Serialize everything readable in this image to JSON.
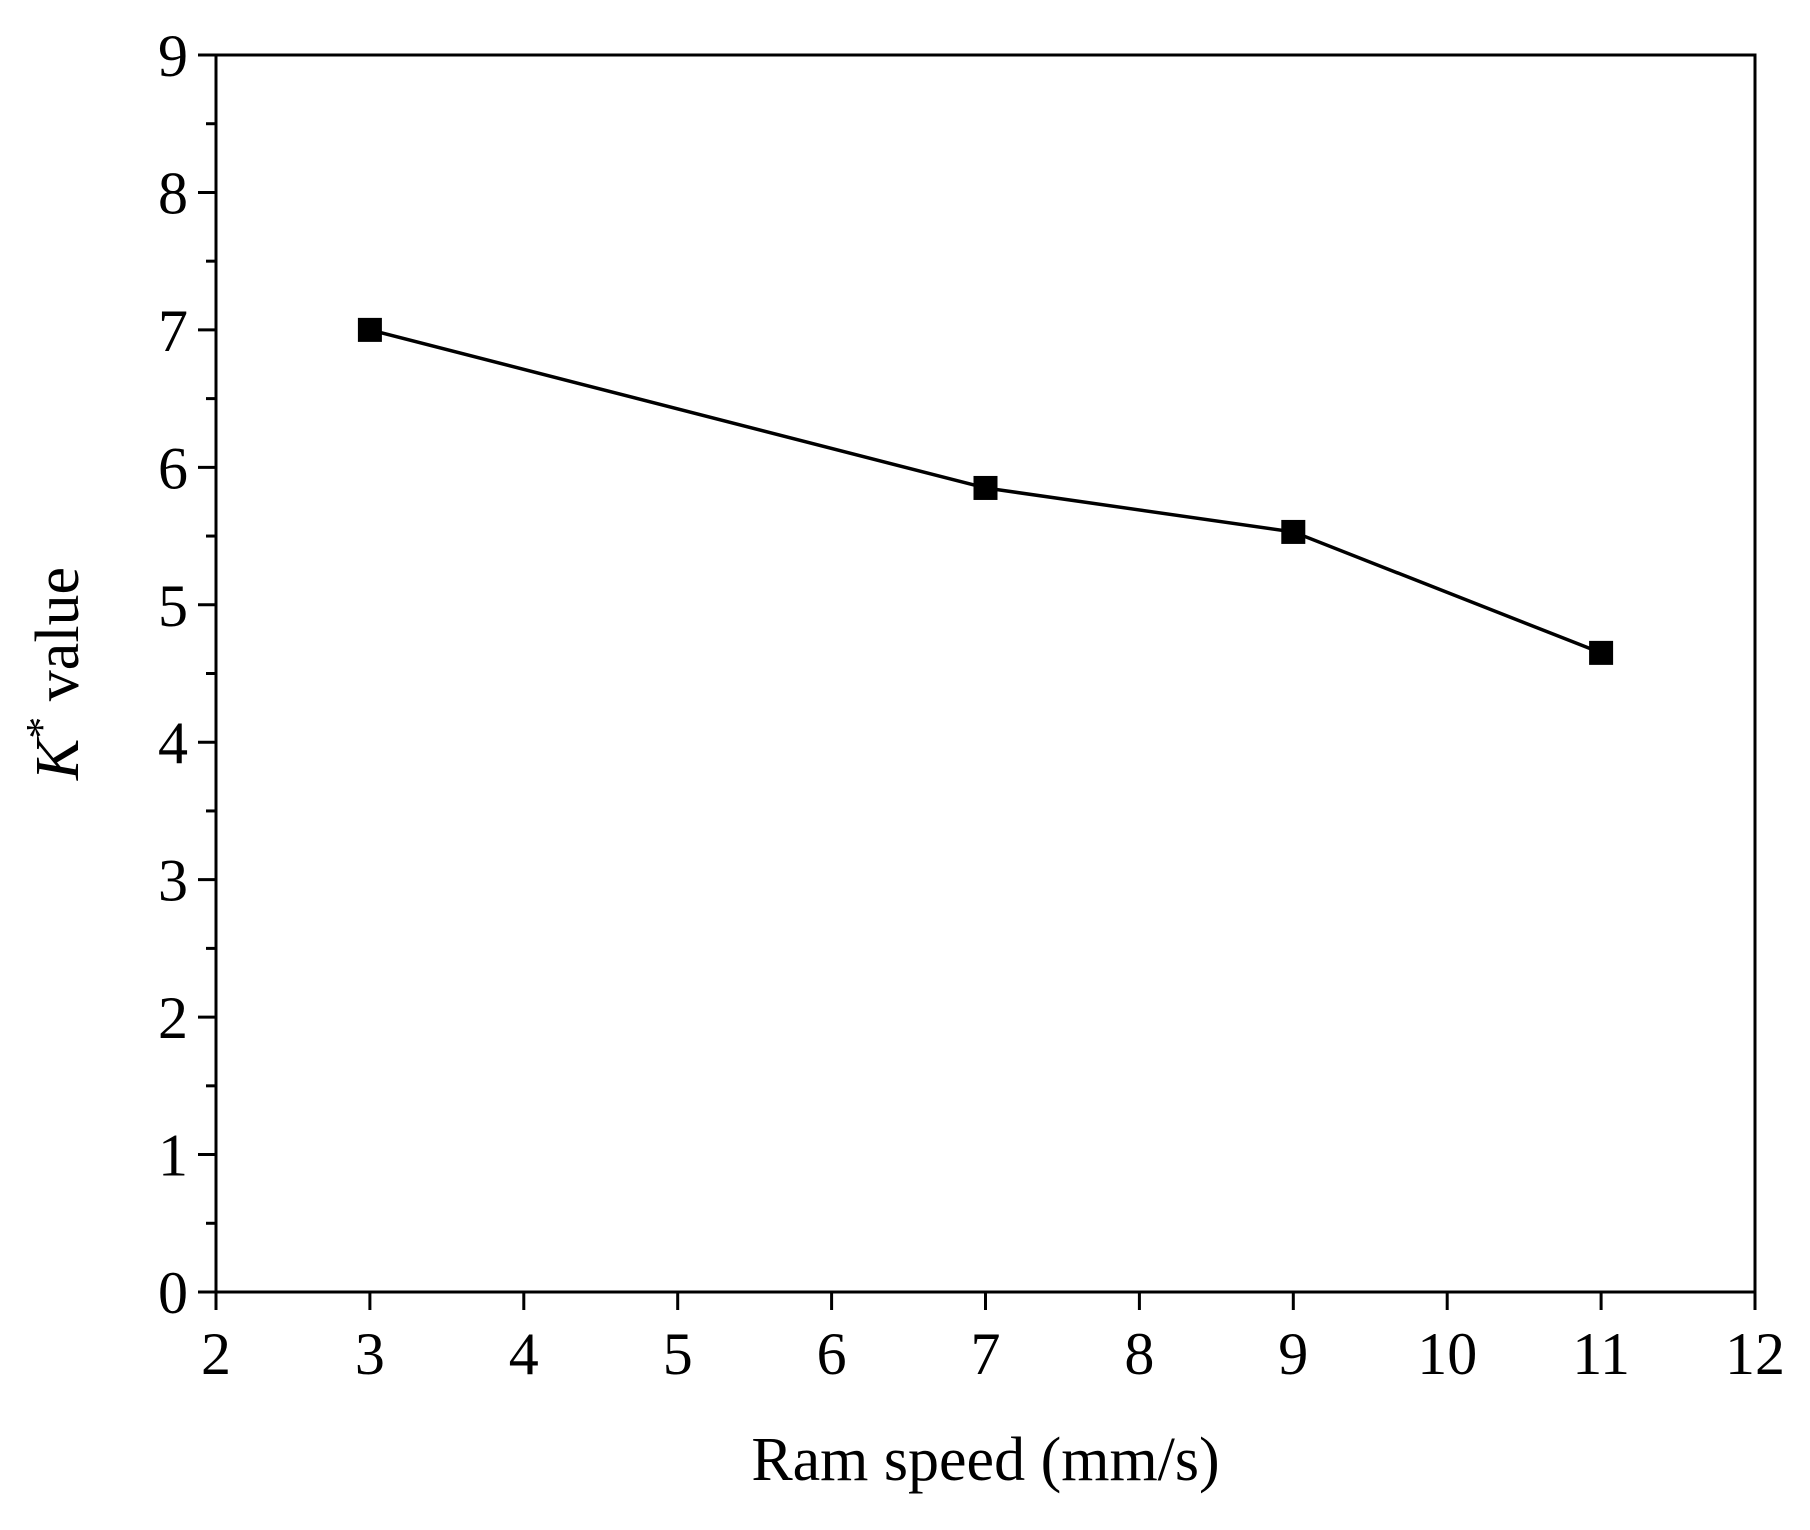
{
  "chart_data": {
    "type": "line",
    "title": "",
    "xlabel": "Ram speed (mm/s)",
    "ylabel": {
      "symbol": "K",
      "superscript": "*",
      "suffix": " value"
    },
    "xlim": [
      2,
      12
    ],
    "ylim": [
      0,
      9
    ],
    "x_ticks": [
      2,
      3,
      4,
      5,
      6,
      7,
      8,
      9,
      10,
      11,
      12
    ],
    "y_ticks": [
      0,
      1,
      2,
      3,
      4,
      5,
      6,
      7,
      8,
      9
    ],
    "y_minor_step": 0.5,
    "grid": false,
    "legend": "none",
    "series": [
      {
        "name": "K* value",
        "marker": "square",
        "color": "#000000",
        "x": [
          3,
          7,
          9,
          11
        ],
        "y": [
          7.0,
          5.85,
          5.53,
          4.65
        ]
      }
    ]
  }
}
